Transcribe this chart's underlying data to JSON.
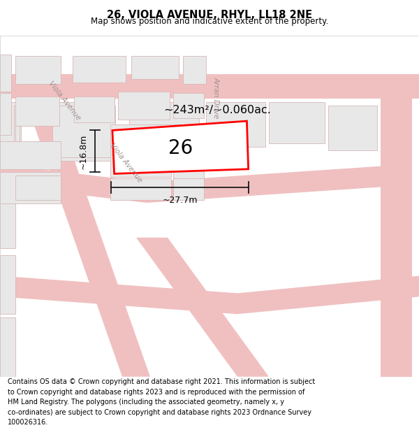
{
  "title": "26, VIOLA AVENUE, RHYL, LL18 2NE",
  "subtitle": "Map shows position and indicative extent of the property.",
  "footer": "Contains OS data © Crown copyright and database right 2021. This information is subject\nto Crown copyright and database rights 2023 and is reproduced with the permission of\nHM Land Registry. The polygons (including the associated geometry, namely x, y\nco-ordinates) are subject to Crown copyright and database rights 2023 Ordnance Survey\n100026316.",
  "area_text": "~243m²/~0.060ac.",
  "map_bg": "#ffffff",
  "building_color": "#e8e8e8",
  "building_edge": "#d0b0b0",
  "road_color": "#f0c0c0",
  "highlight_color": "#ff0000",
  "dim_line_color": "#1a1a1a",
  "label_26": "26",
  "width_label": "~27.7m",
  "height_label": "~16.8m",
  "viola_avenue_label": "Viola Avenue",
  "arran_drive_label": "Arran Drive",
  "text_color_road": "#c8a0a0"
}
